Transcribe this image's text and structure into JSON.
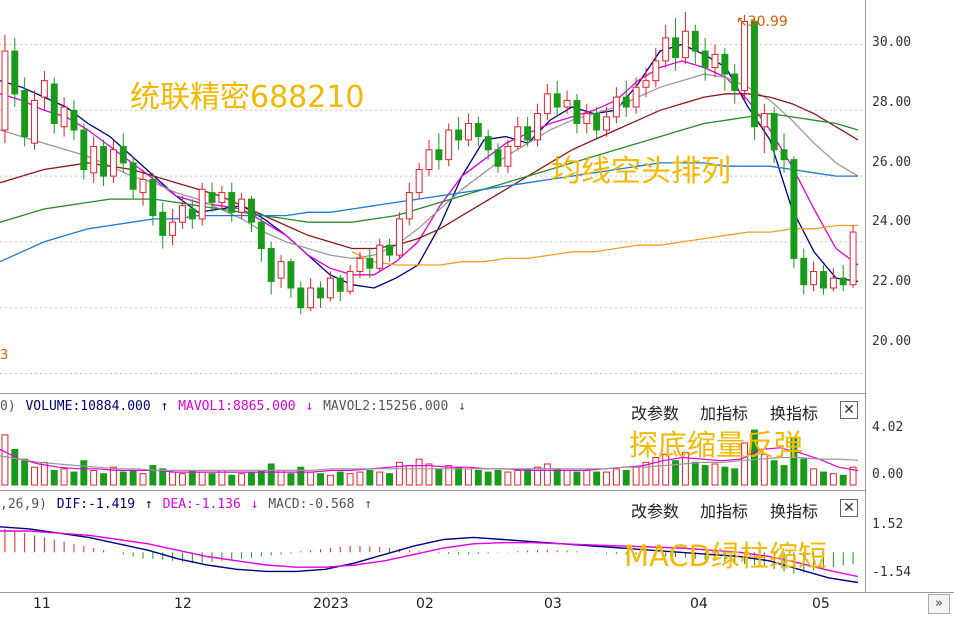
{
  "colors": {
    "up": "#e8202a",
    "down": "#1a9a1a",
    "ma5": "#000080",
    "ma10": "#e000e0",
    "ma20": "#9a9a9a",
    "ma30": "#8b1a1a",
    "ma60": "#2a8a2a",
    "ma120": "#1e78d8",
    "ma250": "#f0a020",
    "overlay": "#f5b800"
  },
  "overlays": {
    "stock_title": "统联精密688210",
    "ma_pattern": "均线空头排列",
    "volume_note": "探底缩量反弹",
    "macd_note": "MACD绿柱缩短"
  },
  "peak_label": "30.99",
  "left_edge_mark": "3",
  "price_axis": [
    "30.00",
    "28.00",
    "26.00",
    "24.00",
    "22.00",
    "20.00"
  ],
  "volume_axis": [
    "4.02",
    "0.00"
  ],
  "macd_axis": [
    "1.52",
    "-1.54"
  ],
  "volume_row": {
    "prefix": "0)",
    "volume": "VOLUME:10884.000",
    "mavol1": "MAVOL1:8865.000",
    "mavol2": "MAVOL2:15256.000"
  },
  "macd_row": {
    "prefix": ",26,9)",
    "dif": "DIF:-1.419",
    "dea": "DEA:-1.136",
    "macd": "MACD:-0.568"
  },
  "buttons": {
    "modify": "改参数",
    "add": "加指标",
    "switch": "换指标",
    "close": "✕"
  },
  "x_axis": [
    "11",
    "12",
    "2023",
    "02",
    "03",
    "04",
    "05"
  ],
  "nav": "»",
  "chart_data": {
    "type": "candlestick",
    "y_range": [
      19.5,
      31.2
    ],
    "price_ticks": [
      30,
      28,
      26,
      24,
      22,
      20
    ],
    "candles": [
      [
        27.4,
        29.8,
        27.0,
        30.3
      ],
      [
        29.8,
        28.5,
        28.1,
        30.2
      ],
      [
        28.6,
        27.2,
        26.9,
        29.0
      ],
      [
        27.0,
        28.3,
        26.8,
        28.6
      ],
      [
        28.4,
        28.9,
        28.0,
        29.2
      ],
      [
        28.8,
        27.6,
        27.3,
        29.0
      ],
      [
        27.5,
        28.1,
        27.2,
        28.4
      ],
      [
        28.0,
        27.4,
        27.1,
        28.3
      ],
      [
        27.4,
        26.2,
        25.9,
        27.6
      ],
      [
        26.1,
        26.9,
        25.8,
        27.2
      ],
      [
        26.9,
        26.0,
        25.7,
        27.1
      ],
      [
        26.0,
        26.8,
        25.8,
        27.1
      ],
      [
        26.9,
        26.4,
        26.1,
        27.3
      ],
      [
        26.4,
        25.6,
        25.3,
        26.6
      ],
      [
        25.5,
        25.9,
        25.1,
        26.2
      ],
      [
        25.9,
        24.8,
        24.5,
        26.1
      ],
      [
        24.9,
        24.2,
        23.8,
        25.2
      ],
      [
        24.2,
        24.6,
        23.9,
        25.0
      ],
      [
        24.6,
        25.1,
        24.4,
        25.4
      ],
      [
        25.0,
        24.7,
        24.4,
        25.3
      ],
      [
        24.7,
        25.6,
        24.5,
        25.8
      ],
      [
        25.5,
        25.2,
        24.9,
        25.8
      ],
      [
        25.2,
        25.5,
        25.0,
        25.7
      ],
      [
        25.5,
        24.9,
        24.6,
        25.8
      ],
      [
        24.9,
        25.3,
        24.7,
        25.5
      ],
      [
        25.3,
        24.6,
        24.3,
        25.4
      ],
      [
        24.6,
        23.8,
        23.4,
        24.8
      ],
      [
        23.8,
        22.8,
        22.4,
        24.0
      ],
      [
        22.9,
        23.4,
        22.6,
        23.6
      ],
      [
        23.4,
        22.6,
        22.3,
        23.5
      ],
      [
        22.6,
        22.0,
        21.8,
        22.8
      ],
      [
        22.0,
        22.6,
        21.9,
        22.9
      ],
      [
        22.6,
        22.3,
        22.0,
        22.8
      ],
      [
        22.3,
        22.9,
        22.2,
        23.1
      ],
      [
        22.9,
        22.5,
        22.2,
        23.0
      ],
      [
        22.5,
        23.1,
        22.4,
        23.3
      ],
      [
        23.1,
        23.5,
        22.9,
        23.7
      ],
      [
        23.5,
        23.2,
        22.9,
        23.8
      ],
      [
        23.2,
        23.9,
        23.1,
        24.1
      ],
      [
        23.9,
        23.6,
        23.4,
        24.1
      ],
      [
        23.6,
        24.7,
        23.5,
        24.9
      ],
      [
        24.7,
        25.5,
        24.5,
        25.8
      ],
      [
        25.5,
        26.2,
        25.3,
        26.4
      ],
      [
        26.2,
        26.8,
        26.0,
        27.1
      ],
      [
        26.8,
        26.5,
        26.2,
        27.3
      ],
      [
        26.5,
        27.4,
        26.3,
        27.6
      ],
      [
        27.4,
        27.1,
        26.8,
        27.8
      ],
      [
        27.1,
        27.6,
        26.9,
        27.9
      ],
      [
        27.6,
        27.2,
        26.9,
        27.8
      ],
      [
        27.2,
        26.8,
        26.5,
        27.4
      ],
      [
        26.8,
        26.3,
        26.1,
        27.0
      ],
      [
        26.3,
        26.9,
        26.1,
        27.1
      ],
      [
        26.9,
        27.5,
        26.8,
        27.8
      ],
      [
        27.5,
        27.1,
        26.9,
        27.8
      ],
      [
        27.1,
        27.9,
        26.9,
        28.2
      ],
      [
        27.9,
        28.5,
        27.7,
        28.8
      ],
      [
        28.5,
        28.1,
        27.8,
        28.9
      ],
      [
        28.1,
        28.3,
        27.9,
        28.6
      ],
      [
        28.3,
        27.6,
        27.3,
        28.5
      ],
      [
        27.6,
        27.9,
        27.3,
        28.2
      ],
      [
        27.9,
        27.4,
        27.1,
        28.1
      ],
      [
        27.4,
        27.8,
        27.2,
        28.1
      ],
      [
        27.8,
        28.4,
        27.6,
        28.7
      ],
      [
        28.4,
        28.1,
        27.8,
        28.9
      ],
      [
        28.1,
        28.7,
        27.9,
        29.0
      ],
      [
        28.7,
        28.9,
        28.4,
        29.3
      ],
      [
        28.9,
        29.5,
        28.7,
        29.9
      ],
      [
        29.5,
        30.2,
        29.3,
        30.6
      ],
      [
        30.2,
        29.6,
        29.2,
        30.8
      ],
      [
        29.6,
        30.4,
        29.4,
        30.99
      ],
      [
        30.4,
        29.8,
        29.4,
        30.6
      ],
      [
        29.8,
        29.3,
        28.9,
        30.2
      ],
      [
        29.3,
        29.7,
        29.0,
        30.0
      ],
      [
        29.7,
        29.1,
        28.6,
        29.9
      ],
      [
        29.1,
        28.6,
        28.2,
        29.4
      ],
      [
        28.6,
        30.7,
        28.3,
        30.9
      ],
      [
        30.7,
        27.5,
        27.1,
        30.8
      ],
      [
        27.5,
        27.9,
        26.7,
        28.2
      ],
      [
        27.9,
        26.8,
        26.4,
        28.1
      ],
      [
        26.8,
        26.5,
        26.1,
        27.3
      ],
      [
        26.5,
        23.5,
        23.2,
        26.6
      ],
      [
        23.5,
        22.7,
        22.4,
        23.8
      ],
      [
        22.7,
        23.1,
        22.5,
        23.4
      ],
      [
        23.1,
        22.6,
        22.4,
        23.3
      ],
      [
        22.6,
        22.9,
        22.5,
        23.2
      ],
      [
        22.9,
        22.7,
        22.5,
        23.3
      ],
      [
        22.7,
        24.3,
        22.6,
        24.5
      ]
    ],
    "ma_lines": {
      "ma5": [
        28.9,
        28.7,
        28.4,
        28.1,
        27.6,
        27.2,
        26.6,
        26.0,
        25.4,
        24.9,
        25.0,
        25.1,
        24.7,
        24.2,
        23.6,
        23.0,
        22.7,
        22.6,
        22.9,
        23.3,
        24.5,
        26.0,
        27.1,
        27.2,
        27.0,
        27.7,
        28.1,
        27.9,
        28.0,
        28.8,
        29.8,
        30.0,
        29.7,
        29.3,
        28.1,
        27.1,
        25.0,
        23.7,
        22.9,
        22.8
      ],
      "ma10": [
        28.5,
        28.3,
        28.0,
        27.8,
        27.4,
        26.9,
        26.4,
        25.9,
        25.4,
        25.2,
        25.1,
        25.0,
        24.6,
        24.2,
        23.6,
        23.2,
        23.0,
        23.0,
        23.4,
        24.0,
        25.1,
        26.0,
        26.5,
        27.0,
        27.3,
        27.6,
        27.8,
        28.0,
        28.3,
        28.9,
        29.3,
        29.5,
        29.3,
        29.0,
        28.3,
        27.4,
        26.3,
        25.0,
        23.8,
        23.3
      ],
      "ma20": [
        27.4,
        27.2,
        27.0,
        26.8,
        26.6,
        26.3,
        26.0,
        25.8,
        25.5,
        25.3,
        25.0,
        24.7,
        24.3,
        24.0,
        23.8,
        23.6,
        23.5,
        23.6,
        23.9,
        24.4,
        25.0,
        25.6,
        26.1,
        26.6,
        27.0,
        27.4,
        27.7,
        27.9,
        28.1,
        28.4,
        28.7,
        28.9,
        29.1,
        29.0,
        28.7,
        28.3,
        27.7,
        27.0,
        26.4,
        26.0
      ],
      "ma30": [
        25.8,
        26.0,
        26.2,
        26.3,
        26.4,
        26.3,
        26.2,
        26.0,
        25.8,
        25.6,
        25.4,
        25.1,
        24.8,
        24.5,
        24.2,
        24.0,
        23.8,
        23.8,
        23.9,
        24.1,
        24.4,
        24.8,
        25.2,
        25.6,
        26.0,
        26.4,
        26.8,
        27.1,
        27.4,
        27.7,
        28.0,
        28.2,
        28.4,
        28.5,
        28.5,
        28.4,
        28.2,
        27.9,
        27.5,
        27.1
      ],
      "ma60": [
        24.6,
        24.8,
        25.0,
        25.1,
        25.2,
        25.3,
        25.3,
        25.3,
        25.2,
        25.1,
        25.0,
        24.9,
        24.8,
        24.7,
        24.6,
        24.6,
        24.6,
        24.7,
        24.8,
        25.0,
        25.2,
        25.4,
        25.6,
        25.8,
        26.0,
        26.2,
        26.4,
        26.6,
        26.8,
        27.0,
        27.2,
        27.4,
        27.6,
        27.7,
        27.8,
        27.9,
        27.8,
        27.7,
        27.6,
        27.4
      ],
      "ma120": [
        23.4,
        23.7,
        24.0,
        24.2,
        24.4,
        24.5,
        24.6,
        24.7,
        24.7,
        24.8,
        24.8,
        24.8,
        24.8,
        24.8,
        24.9,
        24.9,
        25.0,
        25.1,
        25.2,
        25.3,
        25.4,
        25.5,
        25.6,
        25.7,
        25.8,
        25.9,
        26.0,
        26.1,
        26.2,
        26.3,
        26.4,
        26.4,
        26.4,
        26.3,
        26.3,
        26.3,
        26.2,
        26.1,
        26.0,
        26.0
      ],
      "ma250": [
        null,
        null,
        null,
        null,
        null,
        null,
        null,
        null,
        null,
        null,
        null,
        null,
        null,
        null,
        null,
        null,
        23.7,
        23.4,
        23.3,
        23.3,
        23.3,
        23.4,
        23.4,
        23.5,
        23.5,
        23.6,
        23.7,
        23.7,
        23.8,
        23.9,
        23.9,
        24.0,
        24.1,
        24.2,
        24.3,
        24.3,
        24.4,
        24.4,
        24.5,
        24.5
      ]
    },
    "volume": [
      3.1,
      2.2,
      1.6,
      1.1,
      1.4,
      0.9,
      1.0,
      0.8,
      1.5,
      0.9,
      0.7,
      1.1,
      0.8,
      0.9,
      0.7,
      1.2,
      1.0,
      0.8,
      0.7,
      0.9,
      0.8,
      0.7,
      0.9,
      0.6,
      0.7,
      0.8,
      0.9,
      1.3,
      0.9,
      0.7,
      1.1,
      0.8,
      0.7,
      0.6,
      0.8,
      0.7,
      0.8,
      0.9,
      0.8,
      0.7,
      1.4,
      1.2,
      1.6,
      1.3,
      1.0,
      1.2,
      1.1,
      1.0,
      0.9,
      0.8,
      0.9,
      0.8,
      0.9,
      1.0,
      1.1,
      1.3,
      1.0,
      0.9,
      0.8,
      0.9,
      0.8,
      0.8,
      1.0,
      0.9,
      1.1,
      1.4,
      1.7,
      1.9,
      1.5,
      2.0,
      1.4,
      1.2,
      1.3,
      1.1,
      1.0,
      2.6,
      3.4,
      1.9,
      1.5,
      1.2,
      2.9,
      1.6,
      1.0,
      0.8,
      0.7,
      0.6,
      1.1
    ],
    "macd_hist": [
      1.1,
      1.0,
      0.9,
      0.8,
      0.7,
      0.6,
      0.5,
      0.4,
      0.3,
      0.2,
      0.1,
      0.0,
      -0.1,
      -0.2,
      -0.3,
      -0.3,
      -0.35,
      -0.4,
      -0.45,
      -0.5,
      -0.5,
      -0.45,
      -0.4,
      -0.35,
      -0.3,
      -0.25,
      -0.2,
      -0.15,
      -0.1,
      -0.05,
      0.05,
      0.1,
      0.15,
      0.2,
      0.25,
      0.3,
      0.3,
      0.28,
      0.25,
      0.2,
      0.15,
      0.1,
      0.05,
      0.0,
      -0.05,
      -0.08,
      -0.1,
      -0.1,
      -0.08,
      -0.05,
      -0.02,
      0.02,
      0.05,
      0.08,
      0.1,
      0.12,
      0.1,
      0.08,
      0.05,
      0.02,
      -0.02,
      -0.05,
      -0.08,
      -0.1,
      -0.12,
      -0.15,
      -0.18,
      -0.2,
      -0.22,
      -0.25,
      -0.3,
      -0.35,
      -0.4,
      -0.45,
      -0.5,
      -0.55,
      -0.6,
      -0.7,
      -0.8,
      -0.9,
      -1.0,
      -0.95,
      -0.85,
      -0.75,
      -0.7,
      -0.62,
      -0.57
    ],
    "dif": [
      1.2,
      1.1,
      0.9,
      0.7,
      0.4,
      0.1,
      -0.3,
      -0.6,
      -0.8,
      -0.9,
      -0.9,
      -0.8,
      -0.5,
      -0.1,
      0.3,
      0.6,
      0.7,
      0.6,
      0.5,
      0.4,
      0.3,
      0.2,
      0.1,
      0.0,
      -0.1,
      -0.2,
      -0.4,
      -0.8,
      -1.2,
      -1.42
    ],
    "dea": [
      1.0,
      1.0,
      0.9,
      0.8,
      0.6,
      0.4,
      0.1,
      -0.2,
      -0.4,
      -0.6,
      -0.7,
      -0.7,
      -0.6,
      -0.4,
      -0.1,
      0.2,
      0.4,
      0.45,
      0.45,
      0.4,
      0.35,
      0.3,
      0.25,
      0.2,
      0.1,
      0.0,
      -0.2,
      -0.5,
      -0.85,
      -1.14
    ],
    "volume_ma1": [
      2.2,
      1.6,
      1.3,
      1.1,
      1.0,
      1.0,
      0.9,
      0.9,
      0.9,
      0.8,
      0.8,
      0.8,
      0.8,
      0.8,
      0.8,
      0.8,
      0.8,
      0.9,
      0.9,
      1.0,
      1.1,
      1.2,
      1.2,
      1.1,
      1.1,
      1.0,
      1.0,
      0.9,
      0.9,
      0.9,
      0.9,
      1.0,
      1.1,
      1.2,
      1.5,
      1.7,
      1.6,
      1.5,
      1.6,
      2.2,
      2.3,
      2.0,
      1.6,
      1.1,
      0.89
    ],
    "volume_ma2": [
      1.8,
      1.6,
      1.4,
      1.3,
      1.2,
      1.1,
      1.0,
      1.0,
      0.9,
      0.9,
      0.9,
      0.9,
      0.9,
      0.9,
      0.9,
      0.9,
      0.9,
      1.0,
      1.0,
      1.0,
      1.0,
      1.0,
      1.0,
      1.0,
      1.0,
      1.0,
      1.0,
      1.0,
      1.0,
      1.0,
      1.0,
      1.0,
      1.1,
      1.1,
      1.2,
      1.3,
      1.4,
      1.4,
      1.5,
      1.6,
      1.7,
      1.7,
      1.6,
      1.6,
      1.53
    ],
    "volume_range": [
      0,
      4.02
    ],
    "macd_range": [
      -1.54,
      1.52
    ],
    "x_labels": [
      "11",
      "12",
      "2023",
      "02",
      "03",
      "04",
      "05"
    ]
  }
}
